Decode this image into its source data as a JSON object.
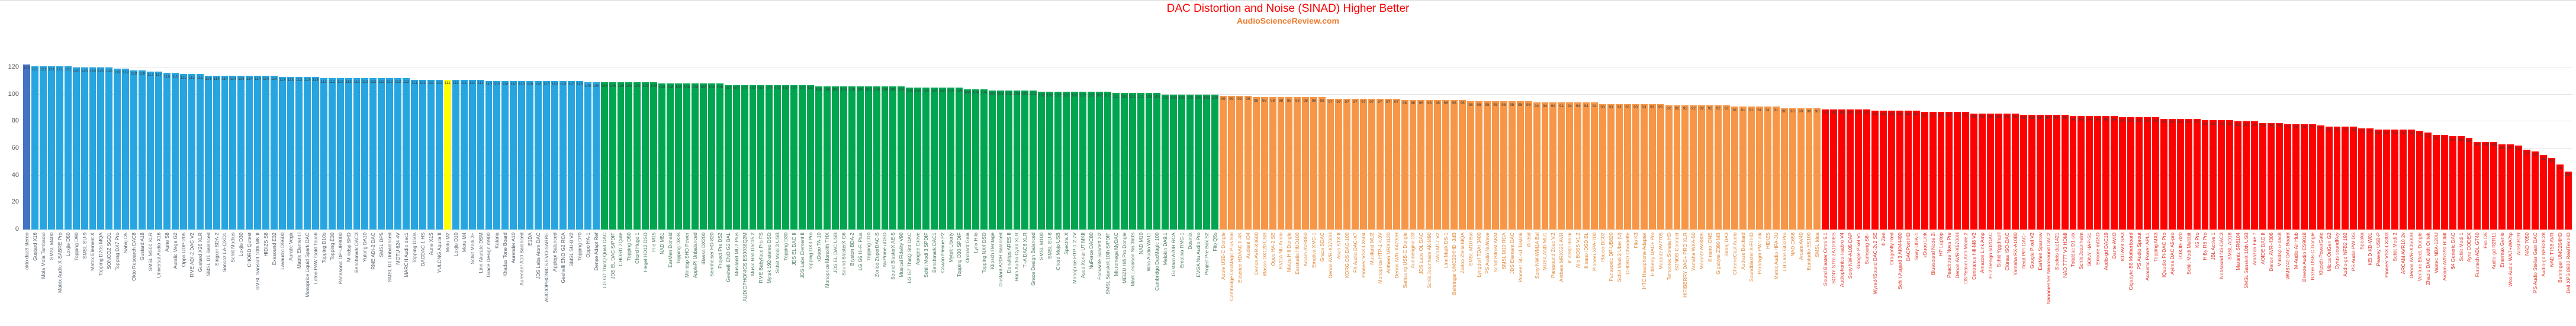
{
  "header": {
    "title": "DAC Distortion and Noise (SINAD) Higher Better",
    "subtitle": "AudioScienceReview.com"
  },
  "chart_data": {
    "type": "bar",
    "title": "DAC Distortion and Noise (SINAD) Higher Better",
    "subtitle": "AudioScienceReview.com",
    "title_color": "#ff0000",
    "subtitle_color": "#ed7d31",
    "ylabel": "",
    "xlabel": "",
    "ylim": [
      0,
      120
    ],
    "yticks": [
      0,
      20,
      40,
      60,
      80,
      100,
      120
    ],
    "grid": true,
    "value_labels": true,
    "legend": "none",
    "gridline_color": "#e2e2e2",
    "axis_label_color": "#595959",
    "value_label_color": "#3b3b3b",
    "highlight_index": 51,
    "highlight_color": "#ffff00",
    "tiers": [
      {
        "name": "navy",
        "start": 0,
        "end": 0,
        "bar": "#4472c4",
        "label": "#596673"
      },
      {
        "name": "blue",
        "start": 1,
        "end": 69,
        "bar": "#27a5e0",
        "label": "#596673"
      },
      {
        "name": "green",
        "start": 70,
        "end": 144,
        "bar": "#00a550",
        "label": "#4e7d5f"
      },
      {
        "name": "orange",
        "start": 145,
        "end": 217,
        "bar": "#f79646",
        "label": "#e08a3c"
      },
      {
        "name": "red",
        "start": 218,
        "end": 308,
        "bar": "#ff0000",
        "label": "#e23b30"
      }
    ],
    "labels": [
      "okto dac8 stereo",
      "Gustard X16",
      "Mola Mola Tambaqui",
      "SMSL M400",
      "Matrix Audio X-SABRE Pro",
      "Loxjie D50",
      "Topping D90",
      "SMSL SU-9",
      "Matrix Element X",
      "Topping D70s MQA",
      "SONCOZ SGD1",
      "Topping DX7 Pro",
      "Sabaj D5",
      "Okto Research DAC8",
      "Gustard A18",
      "SMSL M500 XLR",
      "Universal Audio X16",
      "Aune S8",
      "Auralic Vega G2",
      "Oppo UDP-205",
      "RME ADI-2 DAC V2",
      "Gustard X26 XLR",
      "SMSL D1 Balanced",
      "Singxer SDA-2",
      "Soncoz LA-QXD1",
      "Schiit Modius",
      "Loxjie D30",
      "CHORD Qutest",
      "SMSL Sanskrit 10th MK II",
      "HIDIZS S8",
      "Exasound E32",
      "Lavaudio DS600",
      "Auralic Vega",
      "Matrix Element i",
      "Monoprice Liquid Spark DAC",
      "Lotoo PAW Gold Touch",
      "Topping D10s",
      "Topping E30",
      "Panasonic DP-UB9000",
      "Minidsp SHD",
      "Benchmark DAC3",
      "Yulong DA10",
      "RME ADI-2 DAC",
      "SMSL DP5",
      "SMSL D1 Unbalanced",
      "MOTU 624 4V",
      "MARCH Audio dac1",
      "Topping D50s",
      "DACDAC 1 HS",
      "Aune X1S",
      "YULONG Aquila II",
      "Motu M2",
      "Loxjie D10",
      "Motu M4",
      "Schiit Modi 3+",
      "Linn Akurate DSM",
      "Grace Design m900",
      "Katana",
      "Khadas Tone Board",
      "Aurender A10",
      "Aurender A10 Balanced",
      "E1DA",
      "JDS Labs Atom DAC",
      "AUDIOPHONICS EVO-SABRE",
      "Applepi Balanced",
      "Geshelli ENO G2 RCA",
      "SMSL SU-8 V2",
      "Topping D70",
      "Oppo HA-1",
      "Dense Adapt Ref",
      "LG G7 ThinQ Quad DAC",
      "JDS EL DAC S/PDIF",
      "CHORD 2Qute",
      "Topping D50",
      "Chord Hugo 1",
      "Hegel HD12 DSD",
      "Fiio M15",
      "NAD M51",
      "EarMen Donald",
      "Topping DX3s",
      "Minidsp SHD Power",
      "ApplePi Unbalanced",
      "iBasso DX200",
      "Sennheiser HD-820",
      "Project Pre DS2",
      "Geshelli ENO G2 BAL",
      "Musiland MU2 Plus",
      "AUDIOPHONICS ES9038Q2M",
      "Music Hall Dac15.2",
      "RME Babyface Pro FS",
      "Mytek 192-stereo DSD",
      "Schiit Modi 3 USB",
      "Topping D30",
      "JDS EL DAC II",
      "JDS Labs Element II",
      "Topping DX3 Pro",
      "xDuoo TA-10",
      "Monoprice Monolith THX",
      "JDS EL DAC USB",
      "Sound BlasterX G6",
      "Bryston BDA-2",
      "LG G5 Hi-Fi Plus",
      "Topping D10",
      "Zorloo ZuperDAC-S",
      "NuPrime uDSD",
      "Sound BlasterX AE-5",
      "Musical Fidelity V90",
      "LG G7 ThinQ Std DAC",
      "Apogee Grove",
      "Schiit Modi 3 SPDIF",
      "Benchmark DAC1",
      "Cowon Plenue P2",
      "Mytek Liberty",
      "Topping D30 SPDIF",
      "Orchard Gala",
      "Lynx Hilo",
      "Topping NX4 DSD",
      "Klipsch Heritage",
      "Gustard A20H Balanced",
      "Denafrips ARES II",
      "Holo Audio Cyan XLR",
      "T+A DAC8 XLR",
      "Grace Design Balanced",
      "SMSL M100",
      "SMSL SU-8",
      "Chord Mojo USB",
      "Spectra X",
      "Monoprice HTP-1 2.7V",
      "Asus Xonar U7 MKII",
      "NuForce DAC80",
      "Focusrite Scarlett 2i2",
      "SMSL Sanskrit 10th S/PDIF",
      "Micromega MyDAC",
      "MEIZU Hifi Pro Dongle",
      "Mark Levinson No 360S",
      "NAD M10",
      "Woo Audio WA11",
      "Cambridge DacMagic 100",
      "Melokin DA9.1",
      "Gustard A20H RCA",
      "Emotiva RMC-1",
      "Dosmix",
      "EVGA Nu Audio Pro",
      "Project Pre Box S2",
      "Fiio Q5s",
      "Apple USB-C Dongle",
      "Cambridge DacMagic Plus Bal",
      "Essence HDAAC II-4K",
      "Audient iD4",
      "Denon AVR-X3600",
      "iBasso DX120 USB",
      "Oppo HA-2 SE",
      "EVGA NU Audio",
      "Meizu Hifi Dongle",
      "Earstudio HUD100",
      "Arcam AVR850",
      "Emotiva XMC-1",
      "Grace SDAC",
      "Denon AVR-X3700H",
      "Asus STX II",
      "KORG DS-DAC-100",
      "FX Audio DAC-X7",
      "Pioneer VSX-LX504",
      "Musiland MU2",
      "Monoprice HTP-1 4.0V",
      "Anthem MRX1120",
      "Denon AVR-X4700H",
      "Samsung USB-C Dongle",
      "Audioengine D3",
      "JDS Labs OL DAC",
      "Schiit Jotunheim AK4490",
      "NAD M17 V2",
      "Linn Majik DS-1",
      "Behringer UMC204HD -3dB",
      "Zorloo Ztella MQA",
      "SMSL M10 Bal",
      "Lyngdorf TDAI 3400",
      "PS Audio NuWave",
      "Schiit Bifrost AKM",
      "SMSL M10 RCA",
      "JDS Element DAC",
      "Pioneer SC-61 Toslink",
      "ifi idsd",
      "Sony NW-WM1A Bal",
      "MUSILAND MU1",
      "Parasound Zdac V.2",
      "Anthem MRX520 AVR",
      "ifi iDSD Black",
      "Allo BOSS V1.2",
      "ifi nano iDSD BL",
      "Pioneer XPA-700",
      "iBasso DC02",
      "Panasonic DP-UB820",
      "Schiit Modi 2 Uber (U)",
      "CHORD Chordette",
      "Fiio K3",
      "HTC Headphone Adapter",
      "HifiBerry DAC+ Pro",
      "Marantz AV7705",
      "Tempotec Sonata HD",
      "SONOS Connect",
      "HIFIBERRY DAC+ PRO XLR",
      "Yamaha WXA-50",
      "Marantz AV8805",
      "ifi nano iONE",
      "Gigabyte Z390 MB",
      "Sabaj DA3",
      "ChromeCast Audio",
      "Audeze Deckard",
      "Soundblaster X-FI HD",
      "Paradigm PW-Link",
      "HIDIZS",
      "Matrix Audio HPA-3U",
      "LH Labs GO2Pro",
      "NAD C658",
      "Arcam AV40",
      "Earstudio ES100",
      "SMSL Idea",
      "Sound Blaster Omni 5.1",
      "SONY STR-ZA1100ES",
      "Audiophonics i-sabre V4",
      "Sony NW-A105 DAP",
      "Google Pixel V1",
      "Samsung S8+",
      "Wyred4Sound DAC-2v2 SE",
      "ifi Zen",
      "Dragonfly Red",
      "Schiit Asgard 3 AKM4490",
      "DACPort HD",
      "Sony UDA-1",
      "xDuoo Link",
      "Bluesound Node 2i",
      "HP Laptop",
      "Peachtree Nova Pre",
      "Denon AVR-X6700H",
      "DSPeaker Anti-Mode 2",
      "Centrance hifi-M8 V2",
      "Amazon Link Amp",
      "Pi 2 Design 502DAC",
      "Schiit Yggdrasil",
      "Ciúnas ISO-DAC",
      "Yamaha RX-A1080",
      "iTead PiFi DAC+",
      "Google Pixel V2",
      "EarMen Sparrow",
      "Nanomesher NanoSound DAC2",
      "Soekris dac1421",
      "NAD T777 V3 HDMI",
      "Totaldac D1-six",
      "Schiit Jotunheim",
      "SONY HAP-S1",
      "Encore mDSD",
      "Audio-gd DAC19",
      "Dante AVIO",
      "IOTAVX SA3",
      "Gigabyte B8 Motherboard",
      "PS Audio Sprout",
      "Acoustic Power APL1",
      "Topping MX3",
      "IQaudio Pi-DAC Pro",
      "Ayima DAC A5-pro",
      "LOXJIE d20",
      "Schiit Modi Multibit",
      "K5 Pro",
      "HiBy R6 Pro",
      "JBL Active 1",
      "Nobsound NS-DAC3",
      "SMSL AD18",
      "Marantz SR6104",
      "SMSL Sanskrit 10th USB",
      "Amazon Fire 7",
      "AOIDE DAC II",
      "Denon AVR-4306",
      "Minidsp u-dac8",
      "WM8740 DAC Board",
      "M-Audio Air Hub",
      "Breeze Audio ES9018",
      "Razer USB-C Dongle",
      "Klipsch PowerGate",
      "Micca OriGen G2",
      "Cyrus soundKey",
      "Audio-gd NFB2 192",
      "PS Audio PW DS",
      "Speaka",
      "KEiiD KD-W01",
      "Peavey USB-P",
      "Pioneer VSX-LX303",
      "Schiit Modi 2",
      "ARCAM AVR10 2v",
      "Denon AVR-X3500H",
      "Venture Elect. Dongle",
      "Zhaolu DAC with Oritek",
      "Vantec NBA-120U",
      "Arcam AVR390 HDMI",
      "$4 Generic DAC",
      "Schiit Modi 1",
      "Ayre CODEX",
      "Furutech ADL GT40",
      "Fiio D5",
      "Audio-gd R2R11",
      "Enermax Genie",
      "Woo Audio WA7+WA7tp",
      "Airist R2R",
      "NAD 7050",
      "PS Audio Stellar Gain DAC",
      "Audio-gd NFB28.28",
      "NAD T758 AVR",
      "Behringer UMC204HD",
      "Dell XPS 8930 RealTek HD"
    ],
    "values": [
      122,
      121,
      121,
      121,
      121,
      121,
      120,
      120,
      120,
      120,
      120,
      119,
      119,
      118,
      118,
      117,
      117,
      116,
      116,
      115,
      115,
      115,
      114,
      114,
      114,
      114,
      114,
      114,
      114,
      114,
      114,
      113,
      113,
      113,
      113,
      113,
      112,
      112,
      112,
      112,
      112,
      112,
      112,
      112,
      112,
      112,
      112,
      111,
      111,
      111,
      111,
      111,
      111,
      111,
      111,
      111,
      110,
      110,
      110,
      110,
      110,
      110,
      110,
      110,
      110,
      110,
      110,
      110,
      109,
      109,
      109,
      109,
      109,
      109,
      109,
      109,
      109,
      108,
      108,
      108,
      108,
      108,
      108,
      108,
      108,
      107,
      107,
      107,
      107,
      107,
      107,
      107,
      107,
      107,
      107,
      107,
      106,
      106,
      106,
      106,
      106,
      106,
      106,
      106,
      106,
      106,
      106,
      105,
      105,
      105,
      105,
      105,
      105,
      105,
      104,
      104,
      104,
      103,
      103,
      103,
      103,
      103,
      103,
      102,
      102,
      102,
      102,
      102,
      102,
      102,
      102,
      102,
      101,
      101,
      101,
      101,
      101,
      101,
      100,
      100,
      100,
      100,
      100,
      100,
      100,
      99,
      99,
      99,
      99,
      98,
      98,
      98,
      98,
      98,
      98,
      98,
      98,
      98,
      97,
      97,
      97,
      97,
      97,
      97,
      97,
      97,
      97,
      96,
      96,
      96,
      96,
      96,
      96,
      96,
      96,
      95,
      95,
      95,
      95,
      95,
      95,
      95,
      95,
      94,
      94,
      94,
      94,
      94,
      94,
      94,
      94,
      93,
      93,
      93,
      93,
      93,
      93,
      93,
      93,
      92,
      92,
      92,
      92,
      92,
      92,
      92,
      92,
      91,
      91,
      91,
      91,
      91,
      91,
      90,
      90,
      90,
      90,
      90,
      89,
      89,
      89,
      89,
      89,
      89,
      88,
      88,
      88,
      88,
      88,
      88,
      87,
      87,
      87,
      87,
      87,
      87,
      86,
      86,
      86,
      86,
      86,
      86,
      85,
      85,
      85,
      85,
      85,
      85,
      84,
      84,
      84,
      84,
      84,
      84,
      83,
      83,
      83,
      83,
      83,
      82,
      82,
      82,
      82,
      82,
      81,
      81,
      81,
      81,
      80,
      80,
      80,
      79,
      79,
      79,
      78,
      78,
      78,
      78,
      77,
      76,
      76,
      76,
      76,
      75,
      75,
      74,
      74,
      74,
      74,
      74,
      73,
      72,
      70,
      70,
      69,
      69,
      68,
      65,
      65,
      65,
      63,
      63,
      62,
      59,
      58,
      55,
      53,
      48,
      43
    ]
  }
}
